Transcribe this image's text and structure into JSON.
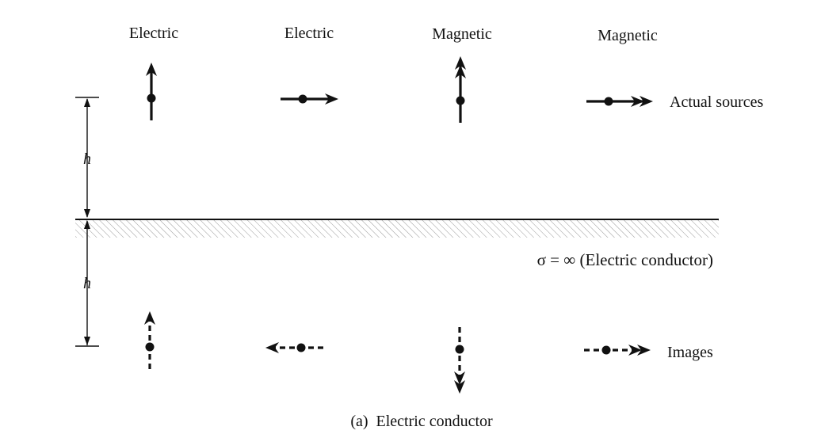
{
  "headers": [
    "Electric",
    "Electric",
    "Magnetic",
    "Magnetic"
  ],
  "row_labels": {
    "actual": "Actual sources",
    "images": "Images"
  },
  "dimension_label": "h",
  "conductor_label": "σ = ∞ (Electric conductor)",
  "caption": "(a)  Electric conductor",
  "colors": {
    "ink": "#111111",
    "background": "#ffffff"
  },
  "sources": [
    {
      "type": "electric",
      "orientation": "vertical",
      "direction": "up",
      "arrowheads": 1,
      "line": "solid"
    },
    {
      "type": "electric",
      "orientation": "horizontal",
      "direction": "right",
      "arrowheads": 1,
      "line": "solid"
    },
    {
      "type": "magnetic",
      "orientation": "vertical",
      "direction": "up",
      "arrowheads": 2,
      "line": "solid"
    },
    {
      "type": "magnetic",
      "orientation": "horizontal",
      "direction": "right",
      "arrowheads": 2,
      "line": "solid"
    }
  ],
  "images": [
    {
      "type": "electric",
      "orientation": "vertical",
      "direction": "up",
      "arrowheads": 1,
      "line": "dashed"
    },
    {
      "type": "electric",
      "orientation": "horizontal",
      "direction": "left",
      "arrowheads": 1,
      "line": "dashed"
    },
    {
      "type": "magnetic",
      "orientation": "vertical",
      "direction": "down",
      "arrowheads": 2,
      "line": "dashed"
    },
    {
      "type": "magnetic",
      "orientation": "horizontal",
      "direction": "right",
      "arrowheads": 2,
      "line": "dashed"
    }
  ]
}
